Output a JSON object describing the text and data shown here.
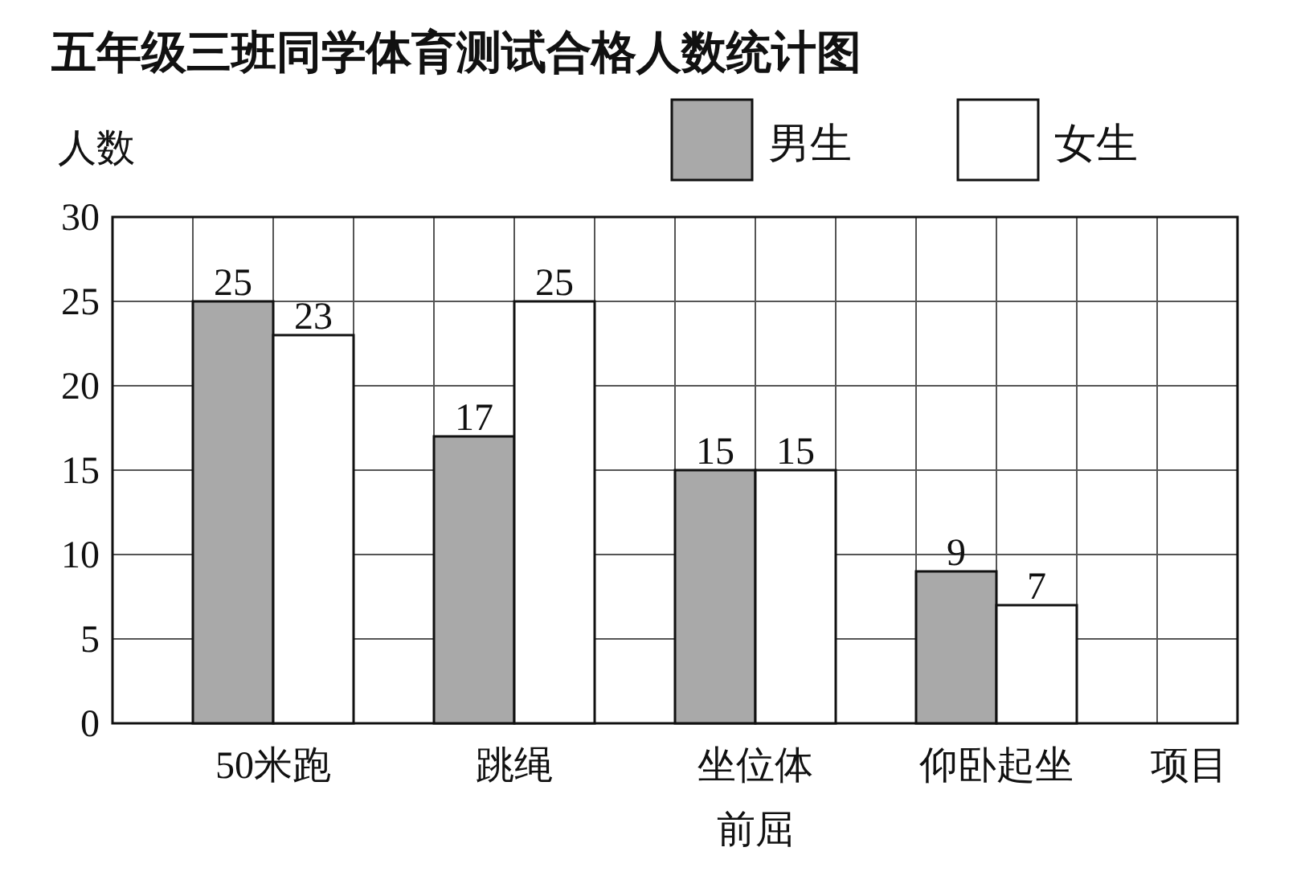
{
  "chart_data": {
    "type": "bar",
    "title": "五年级三班同学体育测试合格人数统计图",
    "xlabel": "项目",
    "ylabel": "人数",
    "categories": [
      "50米跑",
      "跳绳",
      "坐位体前屈",
      "仰卧起坐"
    ],
    "series": [
      {
        "name": "男生",
        "color": "#a9a9a9",
        "values": [
          25,
          17,
          15,
          9
        ]
      },
      {
        "name": "女生",
        "color": "#ffffff",
        "values": [
          23,
          25,
          15,
          7
        ]
      }
    ],
    "ylim": [
      0,
      30
    ],
    "yticks": [
      0,
      5,
      10,
      15,
      20,
      25,
      30
    ],
    "grid": true,
    "legend": "top right",
    "data_labels": true
  }
}
